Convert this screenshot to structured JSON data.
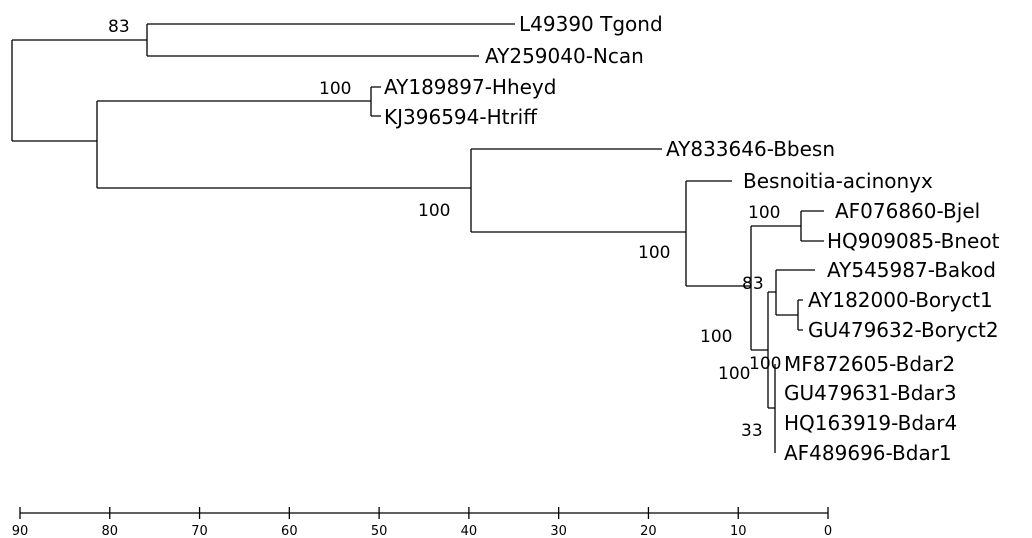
{
  "tree": {
    "tips": [
      "L49390 Tgond",
      "AY259040-Ncan",
      "AY189897-Hheyd",
      "KJ396594-Htriff",
      "AY833646-Bbesn",
      "Besnoitia-acinonyx",
      "AF076860-Bjel",
      "HQ909085-Bneot",
      "AY545987-Bakod",
      "AY182000-Boryct1",
      "GU479632-Boryct2",
      "MF872605-Bdar2",
      "GU479631-Bdar3",
      "HQ163919-Bdar4",
      "AF489696-Bdar1"
    ],
    "support_values": [
      "83",
      "100",
      "100",
      "100",
      "100",
      "83",
      "100",
      "100",
      "100",
      "33"
    ]
  },
  "axis": {
    "ticks": [
      "90",
      "80",
      "70",
      "60",
      "50",
      "40",
      "30",
      "20",
      "10",
      "0"
    ],
    "tick_values": [
      90,
      80,
      70,
      60,
      50,
      40,
      30,
      20,
      10,
      0
    ]
  }
}
